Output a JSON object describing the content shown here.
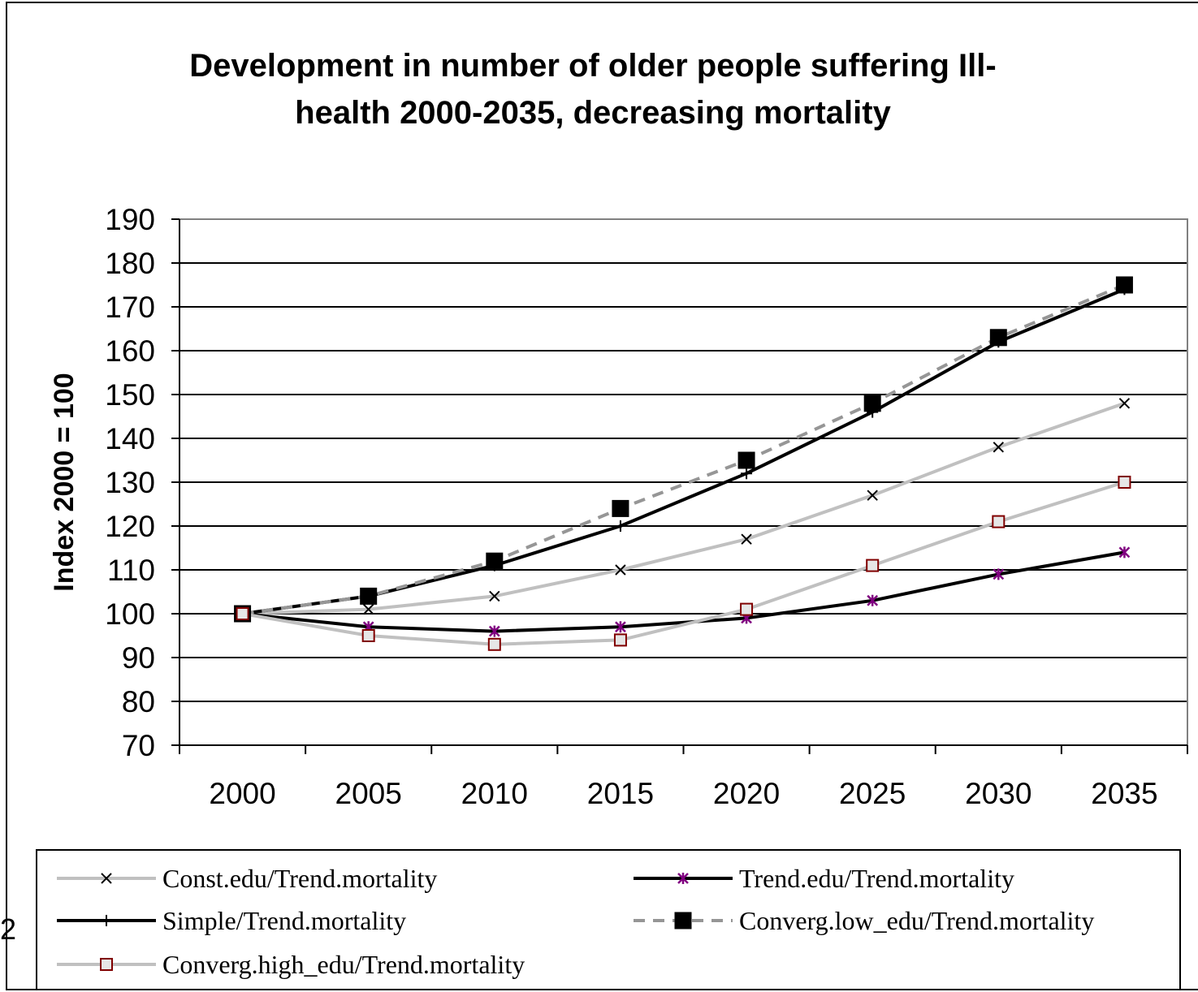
{
  "chart_data": {
    "type": "line",
    "title": [
      "Development in number of older people suffering Ill-",
      "health 2000-2035, decreasing mortality"
    ],
    "ylabel": "Index 2000 = 100",
    "xlabel": "",
    "categories": [
      "2000",
      "2005",
      "2010",
      "2015",
      "2020",
      "2025",
      "2030",
      "2035"
    ],
    "ylim": [
      70,
      190
    ],
    "yticks": [
      70,
      80,
      90,
      100,
      110,
      120,
      130,
      140,
      150,
      160,
      170,
      180,
      190
    ],
    "grid": true,
    "legend_position": "bottom",
    "series": [
      {
        "name": "Const.edu/Trend.mortality",
        "values": [
          100,
          101,
          104,
          110,
          117,
          127,
          138,
          148
        ],
        "color": "#c0c0c0",
        "marker": "x",
        "marker_color": "#000000",
        "dashed": false
      },
      {
        "name": "Trend.edu/Trend.mortality",
        "values": [
          100,
          97,
          96,
          97,
          99,
          103,
          109,
          114
        ],
        "color": "#000000",
        "marker": "star",
        "marker_color": "#800080",
        "dashed": false
      },
      {
        "name": "Simple/Trend.mortality",
        "values": [
          100,
          104,
          111,
          120,
          132,
          146,
          162,
          174
        ],
        "color": "#000000",
        "marker": "plus",
        "marker_color": "#000000",
        "dashed": false
      },
      {
        "name": "Converg.low_edu/Trend.mortality",
        "values": [
          100,
          104,
          112,
          124,
          135,
          148,
          163,
          175
        ],
        "color": "#969696",
        "marker": "square-filled",
        "marker_color": "#000000",
        "dashed": true
      },
      {
        "name": "Converg.high_edu/Trend.mortality",
        "values": [
          100,
          95,
          93,
          94,
          101,
          111,
          121,
          130
        ],
        "color": "#c0c0c0",
        "marker": "square-open",
        "marker_color": "#800000",
        "dashed": false
      }
    ]
  },
  "stray_text": "2"
}
